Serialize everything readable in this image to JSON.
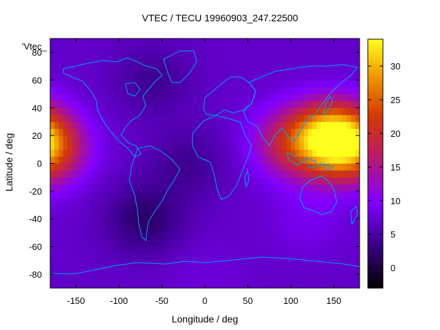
{
  "chart_data": {
    "type": "heatmap",
    "title": "VTEC / TECU 19960903_247.22500",
    "xlabel": "Longitude / deg",
    "ylabel": "Latitude / deg",
    "legend_label": "'Vtec_",
    "xlim": [
      -180,
      180
    ],
    "ylim": [
      -90,
      90
    ],
    "x_ticks": [
      "-150",
      "-100",
      "-50",
      "0",
      "50",
      "100",
      "150"
    ],
    "x_tick_values": [
      -150,
      -100,
      -50,
      0,
      50,
      100,
      150
    ],
    "y_ticks": [
      "-80",
      "-60",
      "-40",
      "-20",
      "0",
      "20",
      "40",
      "60",
      "80"
    ],
    "y_tick_values": [
      -80,
      -60,
      -40,
      -20,
      0,
      20,
      40,
      60,
      80
    ],
    "colorbar": {
      "range": [
        -3,
        34
      ],
      "ticks": [
        "0",
        "5",
        "10",
        "15",
        "20",
        "25",
        "30"
      ],
      "tick_values": [
        0,
        5,
        10,
        15,
        20,
        25,
        30
      ],
      "palette": "black-purple-red-orange-yellow"
    },
    "approximate_features": [
      {
        "lon": 150,
        "lat": 18,
        "vtec": 33
      },
      {
        "lon": 100,
        "lat": 15,
        "vtec": 17
      },
      {
        "lon": -180,
        "lat": 10,
        "vtec": 17
      },
      {
        "lon": -70,
        "lat": -40,
        "vtec": 2
      },
      {
        "lon": -20,
        "lat": 0,
        "vtec": 4
      },
      {
        "lon": -60,
        "lat": 60,
        "vtec": 4
      },
      {
        "lon": 120,
        "lat": -40,
        "vtec": 9
      },
      {
        "lon": 0,
        "lat": -80,
        "vtec": 8
      }
    ],
    "background_vtec": 7
  },
  "colors": {
    "map_coastline": "#00a0ff",
    "background": "#ffffff",
    "frame": "#000000"
  }
}
